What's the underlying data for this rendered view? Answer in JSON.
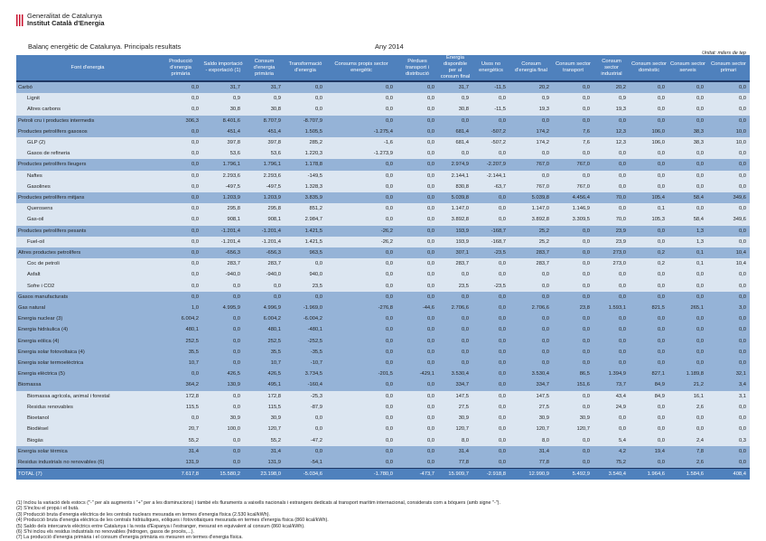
{
  "header": {
    "org_line1": "Generalitat de Catalunya",
    "org_line2": "Institut Català d'Energia",
    "title": "Balanç energètic de Catalunya. Principals resultats",
    "year": "Any 2014",
    "unit": "Unitat: milers de tep"
  },
  "columns": [
    "Font d'energia",
    "Producció d'energia primària",
    "Saldo importació - exportació (1)",
    "Consum d'energia primària",
    "Transformació d'energia",
    "Consums propis sector energètic",
    "Pèrdues transport i distribució",
    "Energia disponible per al consum final",
    "Usos no energètics",
    "Consum d'energia final",
    "Consum sector transport",
    "Consum sector industrial",
    "Consum sector domèstic",
    "Consum sector serveis",
    "Consum sector primari"
  ],
  "rows": [
    {
      "type": "g",
      "label": "Carbó",
      "values": [
        "0,0",
        "31,7",
        "31,7",
        "0,0",
        "0,0",
        "0,0",
        "31,7",
        "-11,5",
        "20,2",
        "0,0",
        "20,2",
        "0,0",
        "0,0",
        "0,0"
      ]
    },
    {
      "type": "s",
      "label": "Lignit",
      "values": [
        "0,0",
        "0,9",
        "0,9",
        "0,0",
        "0,0",
        "0,0",
        "0,9",
        "0,0",
        "0,9",
        "0,0",
        "0,9",
        "0,0",
        "0,0",
        "0,0"
      ]
    },
    {
      "type": "s",
      "label": "Altres carbons",
      "values": [
        "0,0",
        "30,8",
        "30,8",
        "0,0",
        "0,0",
        "0,0",
        "30,8",
        "-11,5",
        "19,3",
        "0,0",
        "19,3",
        "0,0",
        "0,0",
        "0,0"
      ]
    },
    {
      "type": "g",
      "label": "Petroli cru i productes intermedis",
      "values": [
        "306,3",
        "8.401,6",
        "8.707,9",
        "-8.707,9",
        "0,0",
        "0,0",
        "0,0",
        "0,0",
        "0,0",
        "0,0",
        "0,0",
        "0,0",
        "0,0",
        "0,0"
      ]
    },
    {
      "type": "g",
      "label": "Productes petrolífers gasosos",
      "values": [
        "0,0",
        "451,4",
        "451,4",
        "1.505,5",
        "-1.275,4",
        "0,0",
        "681,4",
        "-507,2",
        "174,2",
        "7,6",
        "12,3",
        "106,0",
        "38,3",
        "10,0"
      ]
    },
    {
      "type": "s",
      "label": "GLP (2)",
      "values": [
        "0,0",
        "397,8",
        "397,8",
        "285,2",
        "-1,6",
        "0,0",
        "681,4",
        "-507,2",
        "174,2",
        "7,6",
        "12,3",
        "106,0",
        "38,3",
        "10,0"
      ]
    },
    {
      "type": "s",
      "label": "Gasos de refineria",
      "values": [
        "0,0",
        "53,6",
        "53,6",
        "1.220,3",
        "-1.273,9",
        "0,0",
        "0,0",
        "0,0",
        "0,0",
        "0,0",
        "0,0",
        "0,0",
        "0,0",
        "0,0"
      ]
    },
    {
      "type": "g",
      "label": "Productes petrolífers lleugers",
      "values": [
        "0,0",
        "1.796,1",
        "1.796,1",
        "1.178,8",
        "0,0",
        "0,0",
        "2.974,9",
        "-2.207,9",
        "767,0",
        "767,0",
        "0,0",
        "0,0",
        "0,0",
        "0,0"
      ]
    },
    {
      "type": "s",
      "label": "Naftes",
      "values": [
        "0,0",
        "2.293,6",
        "2.293,6",
        "-149,5",
        "0,0",
        "0,0",
        "2.144,1",
        "-2.144,1",
        "0,0",
        "0,0",
        "0,0",
        "0,0",
        "0,0",
        "0,0"
      ]
    },
    {
      "type": "s",
      "label": "Gasolines",
      "values": [
        "0,0",
        "-497,5",
        "-497,5",
        "1.328,3",
        "0,0",
        "0,0",
        "830,8",
        "-63,7",
        "767,0",
        "767,0",
        "0,0",
        "0,0",
        "0,0",
        "0,0"
      ]
    },
    {
      "type": "g",
      "label": "Productes petrolífers mitjans",
      "values": [
        "0,0",
        "1.203,9",
        "1.203,9",
        "3.835,9",
        "0,0",
        "0,0",
        "5.039,8",
        "0,0",
        "5.039,8",
        "4.456,4",
        "70,0",
        "105,4",
        "58,4",
        "349,6"
      ]
    },
    {
      "type": "s",
      "label": "Querosens",
      "values": [
        "0,0",
        "295,8",
        "295,8",
        "851,2",
        "0,0",
        "0,0",
        "1.147,0",
        "0,0",
        "1.147,0",
        "1.146,9",
        "0,0",
        "0,1",
        "0,0",
        "0,0"
      ]
    },
    {
      "type": "s",
      "label": "Gas-oil",
      "values": [
        "0,0",
        "908,1",
        "908,1",
        "2.984,7",
        "0,0",
        "0,0",
        "3.892,8",
        "0,0",
        "3.892,8",
        "3.309,5",
        "70,0",
        "105,3",
        "58,4",
        "349,6"
      ]
    },
    {
      "type": "g",
      "label": "Productes petrolífers pesants",
      "values": [
        "0,0",
        "-1.201,4",
        "-1.201,4",
        "1.421,5",
        "-26,2",
        "0,0",
        "193,9",
        "-168,7",
        "25,2",
        "0,0",
        "23,9",
        "0,0",
        "1,3",
        "0,0"
      ]
    },
    {
      "type": "s",
      "label": "Fuel-oil",
      "values": [
        "0,0",
        "-1.201,4",
        "-1.201,4",
        "1.421,5",
        "-26,2",
        "0,0",
        "193,9",
        "-168,7",
        "25,2",
        "0,0",
        "23,9",
        "0,0",
        "1,3",
        "0,0"
      ]
    },
    {
      "type": "g",
      "label": "Altres productes petrolífers",
      "values": [
        "0,0",
        "-656,3",
        "-656,3",
        "963,5",
        "0,0",
        "0,0",
        "307,1",
        "-23,5",
        "283,7",
        "0,0",
        "273,0",
        "0,2",
        "0,1",
        "10,4"
      ]
    },
    {
      "type": "s",
      "label": "Coc de petroli",
      "values": [
        "0,0",
        "283,7",
        "283,7",
        "0,0",
        "0,0",
        "0,0",
        "283,7",
        "0,0",
        "283,7",
        "0,0",
        "273,0",
        "0,2",
        "0,1",
        "10,4"
      ]
    },
    {
      "type": "s",
      "label": "Asfalt",
      "values": [
        "0,0",
        "-940,0",
        "-940,0",
        "940,0",
        "0,0",
        "0,0",
        "0,0",
        "0,0",
        "0,0",
        "0,0",
        "0,0",
        "0,0",
        "0,0",
        "0,0"
      ]
    },
    {
      "type": "s",
      "label": "Sofre i CO2",
      "values": [
        "0,0",
        "0,0",
        "0,0",
        "23,5",
        "0,0",
        "0,0",
        "23,5",
        "-23,5",
        "0,0",
        "0,0",
        "0,0",
        "0,0",
        "0,0",
        "0,0"
      ]
    },
    {
      "type": "g",
      "label": "Gasos manufacturats",
      "values": [
        "0,0",
        "0,0",
        "0,0",
        "0,0",
        "0,0",
        "0,0",
        "0,0",
        "0,0",
        "0,0",
        "0,0",
        "0,0",
        "0,0",
        "0,0",
        "0,0"
      ]
    },
    {
      "type": "g",
      "label": "Gas natural",
      "values": [
        "1,0",
        "4.995,9",
        "4.996,9",
        "-1.969,0",
        "-276,8",
        "-44,6",
        "2.706,6",
        "0,0",
        "2.706,6",
        "23,8",
        "1.593,1",
        "821,5",
        "265,1",
        "3,0"
      ]
    },
    {
      "type": "g",
      "label": "Energia nuclear (3)",
      "values": [
        "6.004,2",
        "0,0",
        "6.004,2",
        "-6.004,2",
        "0,0",
        "0,0",
        "0,0",
        "0,0",
        "0,0",
        "0,0",
        "0,0",
        "0,0",
        "0,0",
        "0,0"
      ]
    },
    {
      "type": "g",
      "label": "Energia hidràulica (4)",
      "values": [
        "480,1",
        "0,0",
        "480,1",
        "-480,1",
        "0,0",
        "0,0",
        "0,0",
        "0,0",
        "0,0",
        "0,0",
        "0,0",
        "0,0",
        "0,0",
        "0,0"
      ]
    },
    {
      "type": "g",
      "label": "Energia eòlica (4)",
      "values": [
        "252,5",
        "0,0",
        "252,5",
        "-252,5",
        "0,0",
        "0,0",
        "0,0",
        "0,0",
        "0,0",
        "0,0",
        "0,0",
        "0,0",
        "0,0",
        "0,0"
      ]
    },
    {
      "type": "g",
      "label": "Energia solar fotovoltaica (4)",
      "values": [
        "35,5",
        "0,0",
        "35,5",
        "-35,5",
        "0,0",
        "0,0",
        "0,0",
        "0,0",
        "0,0",
        "0,0",
        "0,0",
        "0,0",
        "0,0",
        "0,0"
      ]
    },
    {
      "type": "g",
      "label": "Energia solar termoelèctrica",
      "values": [
        "10,7",
        "0,0",
        "10,7",
        "-10,7",
        "0,0",
        "0,0",
        "0,0",
        "0,0",
        "0,0",
        "0,0",
        "0,0",
        "0,0",
        "0,0",
        "0,0"
      ]
    },
    {
      "type": "g",
      "label": "Energia elèctrica (5)",
      "values": [
        "0,0",
        "426,5",
        "426,5",
        "3.734,5",
        "-201,5",
        "-429,1",
        "3.530,4",
        "0,0",
        "3.530,4",
        "86,5",
        "1.394,9",
        "827,1",
        "1.189,8",
        "32,1"
      ]
    },
    {
      "type": "g",
      "label": "Biomassa",
      "values": [
        "364,2",
        "130,9",
        "495,1",
        "-160,4",
        "0,0",
        "0,0",
        "334,7",
        "0,0",
        "334,7",
        "151,6",
        "73,7",
        "84,9",
        "21,2",
        "3,4"
      ]
    },
    {
      "type": "s",
      "label": "Biomassa agrícola, animal i forestal",
      "values": [
        "172,8",
        "0,0",
        "172,8",
        "-25,3",
        "0,0",
        "0,0",
        "147,5",
        "0,0",
        "147,5",
        "0,0",
        "43,4",
        "84,9",
        "16,1",
        "3,1"
      ]
    },
    {
      "type": "s",
      "label": "Residus renovables",
      "values": [
        "115,5",
        "0,0",
        "115,5",
        "-87,9",
        "0,0",
        "0,0",
        "27,5",
        "0,0",
        "27,5",
        "0,0",
        "24,9",
        "0,0",
        "2,6",
        "0,0"
      ]
    },
    {
      "type": "s",
      "label": "Bioetanol",
      "values": [
        "0,0",
        "30,9",
        "30,9",
        "0,0",
        "0,0",
        "0,0",
        "30,9",
        "0,0",
        "30,9",
        "30,9",
        "0,0",
        "0,0",
        "0,0",
        "0,0"
      ]
    },
    {
      "type": "s",
      "label": "Biodièsel",
      "values": [
        "20,7",
        "100,0",
        "120,7",
        "0,0",
        "0,0",
        "0,0",
        "120,7",
        "0,0",
        "120,7",
        "120,7",
        "0,0",
        "0,0",
        "0,0",
        "0,0"
      ]
    },
    {
      "type": "s",
      "label": "Biogàs",
      "values": [
        "55,2",
        "0,0",
        "55,2",
        "-47,2",
        "0,0",
        "0,0",
        "8,0",
        "0,0",
        "8,0",
        "0,0",
        "5,4",
        "0,0",
        "2,4",
        "0,3"
      ]
    },
    {
      "type": "g",
      "label": "Energia solar tèrmica",
      "values": [
        "31,4",
        "0,0",
        "31,4",
        "0,0",
        "0,0",
        "0,0",
        "31,4",
        "0,0",
        "31,4",
        "0,0",
        "4,2",
        "19,4",
        "7,8",
        "0,0"
      ]
    },
    {
      "type": "g",
      "label": "Residus industrials no renovables (6)",
      "values": [
        "131,9",
        "0,0",
        "131,9",
        "-54,1",
        "0,0",
        "0,0",
        "77,8",
        "0,0",
        "77,8",
        "0,0",
        "75,2",
        "0,0",
        "2,6",
        "0,0"
      ]
    },
    {
      "type": "t",
      "label": "TOTAL (7)",
      "values": [
        "7.617,8",
        "15.580,2",
        "23.198,0",
        "-5.034,6",
        "-1.780,0",
        "-473,7",
        "15.909,7",
        "-2.918,8",
        "12.990,9",
        "5.492,9",
        "3.540,4",
        "1.964,6",
        "1.584,6",
        "408,4"
      ]
    }
  ],
  "notes": [
    "(1) Inclou la variació dels estocs (\"-\" per als augments i \"+\" per a les disminucions) i també els fluraments a vaixells nacionals i estrangers dedicats al transport marítim internacional, considerats com a bòquers (amb signe \"-\").",
    "(2) S'inclou el propà i el butà.",
    "(3) Producció bruta d'energia elèctrica de les centrals nuclears mesurada en termes d'energia física (2.530 kcal/kWh).",
    "(4) Producció bruta d'energia elèctrica de les centrals hidràuliques, eòliques i fotovoltaiques mesurada en termes d'energia física (860 kcal/kWh).",
    "(5) Saldo dels intercanvis elèctrics entre Catalunya i la resta d'Espanya i l'estranger, mesurat en equivalent al consum (860 kcal/kWh).",
    "(6) S'hi inclou els residus industrials no renovables (hidrogen, gasos de procés,...).",
    "(7) La producció d'energia primària i el consum d'energia primària es mesuren en termes d'energia física."
  ]
}
